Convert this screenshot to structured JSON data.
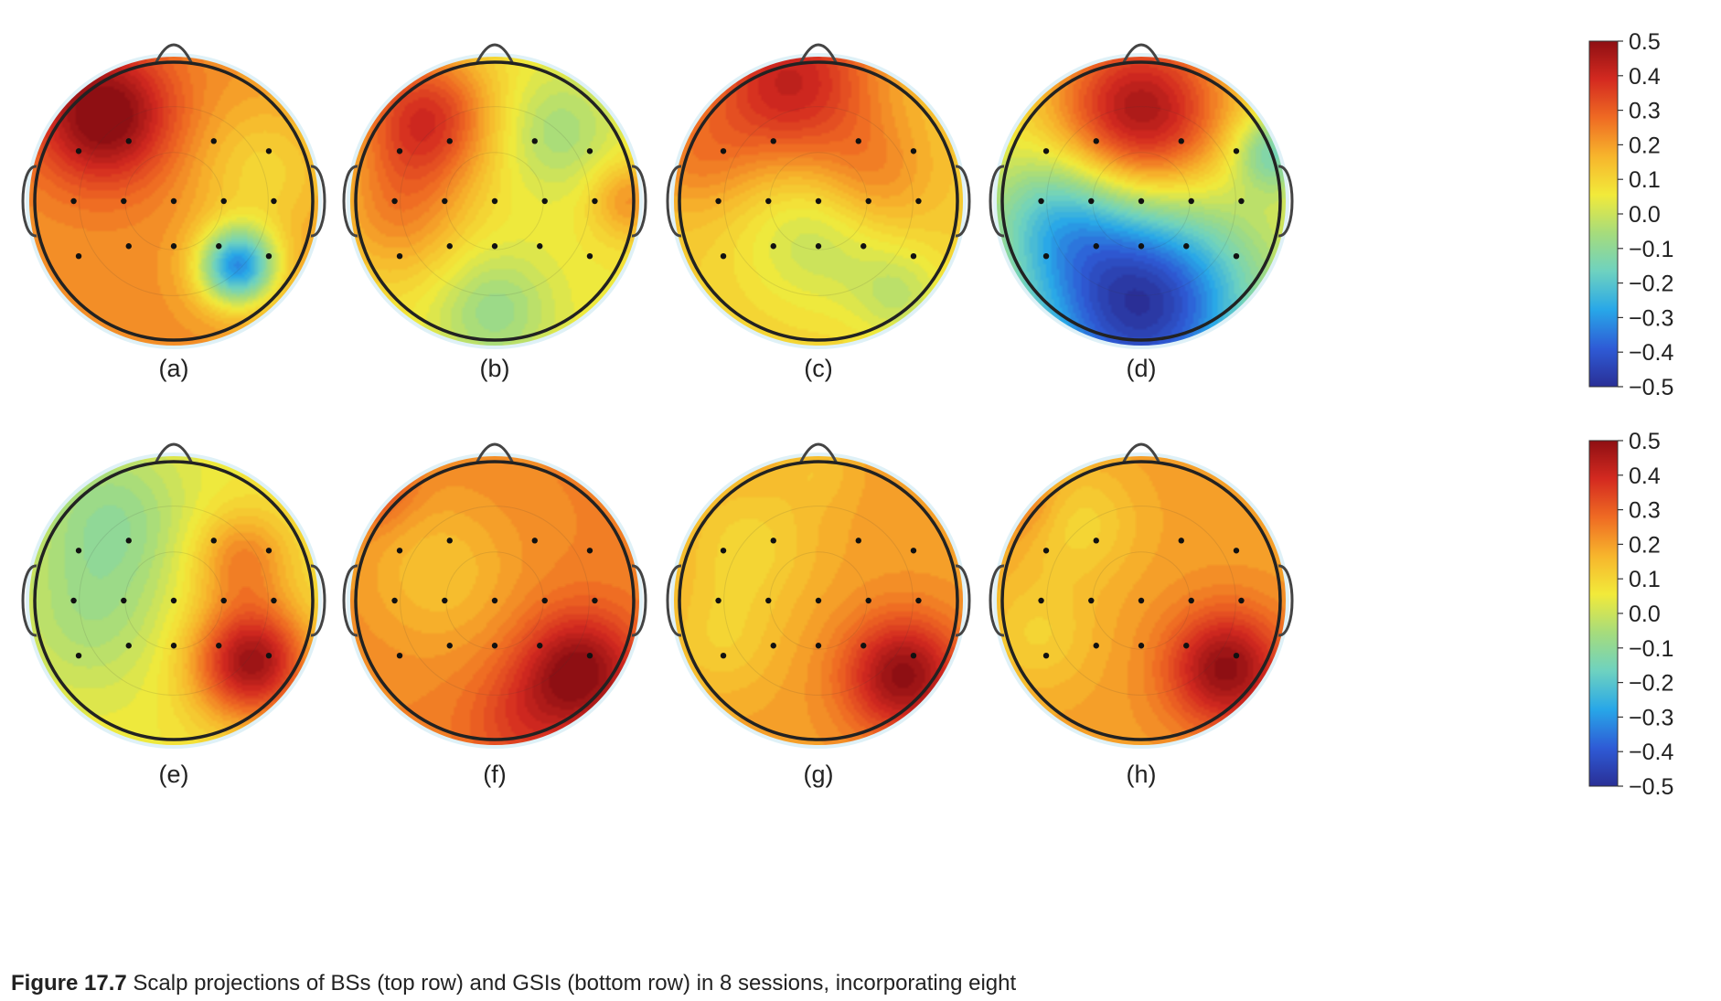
{
  "figure": {
    "caption_label": "Figure 17.7",
    "caption_text": "Scalp projections of BSs (top row) and GSIs (bottom row) in 8 sessions, incorporating eight"
  },
  "colormap": [
    "#2a2f96",
    "#2e5bd6",
    "#28a7e8",
    "#6ed2c0",
    "#a6dc7c",
    "#f2ea3a",
    "#f7b52c",
    "#ef6b23",
    "#d42a20",
    "#8e0f13"
  ],
  "colorbars": [
    {
      "ticks": [
        "0.5",
        "0.4",
        "0.3",
        "0.2",
        "0.1",
        "0.0",
        "−0.1",
        "−0.2",
        "−0.3",
        "−0.4",
        "−0.5"
      ]
    },
    {
      "ticks": [
        "0.5",
        "0.4",
        "0.3",
        "0.2",
        "0.1",
        "0.0",
        "−0.1",
        "−0.2",
        "−0.3",
        "−0.4",
        "−0.5"
      ]
    }
  ],
  "panels": [
    {
      "label": "(a)",
      "base": 0.22,
      "blobs": [
        [
          -0.5,
          0.62,
          0.32,
          0.35
        ],
        [
          0.47,
          -0.48,
          -0.52,
          0.2
        ],
        [
          0.65,
          0.2,
          -0.12,
          0.35
        ]
      ]
    },
    {
      "label": "(b)",
      "base": 0.06,
      "blobs": [
        [
          -0.5,
          0.6,
          0.32,
          0.35
        ],
        [
          -0.7,
          -0.1,
          0.16,
          0.35
        ],
        [
          0.45,
          0.5,
          -0.12,
          0.3
        ],
        [
          0.0,
          -0.8,
          -0.14,
          0.3
        ],
        [
          0.98,
          0.0,
          0.16,
          0.2
        ]
      ]
    },
    {
      "label": "(c)",
      "base": 0.12,
      "blobs": [
        [
          -0.2,
          0.85,
          0.3,
          0.45
        ],
        [
          0.4,
          0.15,
          0.12,
          0.3
        ],
        [
          0.0,
          -0.25,
          -0.14,
          0.4
        ],
        [
          0.6,
          -0.7,
          -0.12,
          0.25
        ],
        [
          -0.9,
          0.3,
          0.1,
          0.3
        ]
      ]
    },
    {
      "label": "(d)",
      "base": 0.06,
      "blobs": [
        [
          0.0,
          0.62,
          0.42,
          0.45
        ],
        [
          0.0,
          -0.75,
          -0.55,
          0.55
        ],
        [
          -0.6,
          -0.1,
          -0.2,
          0.35
        ],
        [
          0.95,
          0.35,
          -0.22,
          0.2
        ]
      ]
    },
    {
      "label": "(e)",
      "base": 0.06,
      "blobs": [
        [
          0.57,
          -0.45,
          0.42,
          0.3
        ],
        [
          0.5,
          0.3,
          0.18,
          0.25
        ],
        [
          -0.45,
          0.6,
          -0.14,
          0.4
        ],
        [
          -0.6,
          -0.15,
          -0.1,
          0.4
        ]
      ]
    },
    {
      "label": "(f)",
      "base": 0.24,
      "blobs": [
        [
          0.62,
          -0.52,
          0.27,
          0.3
        ],
        [
          -0.4,
          0.2,
          -0.1,
          0.4
        ],
        [
          -0.9,
          0.85,
          0.15,
          0.2
        ],
        [
          0.2,
          -0.9,
          0.1,
          0.3
        ]
      ]
    },
    {
      "label": "(g)",
      "base": 0.2,
      "blobs": [
        [
          0.62,
          -0.55,
          0.3,
          0.3
        ],
        [
          -0.5,
          0.4,
          -0.1,
          0.35
        ],
        [
          -0.7,
          -0.3,
          -0.08,
          0.3
        ],
        [
          0.0,
          0.95,
          -0.05,
          0.2
        ]
      ]
    },
    {
      "label": "(h)",
      "base": 0.2,
      "blobs": [
        [
          0.62,
          -0.5,
          0.3,
          0.3
        ],
        [
          -0.45,
          0.55,
          -0.1,
          0.3
        ],
        [
          -0.75,
          -0.25,
          -0.09,
          0.3
        ],
        [
          -0.9,
          0.75,
          0.1,
          0.2
        ]
      ]
    }
  ]
}
